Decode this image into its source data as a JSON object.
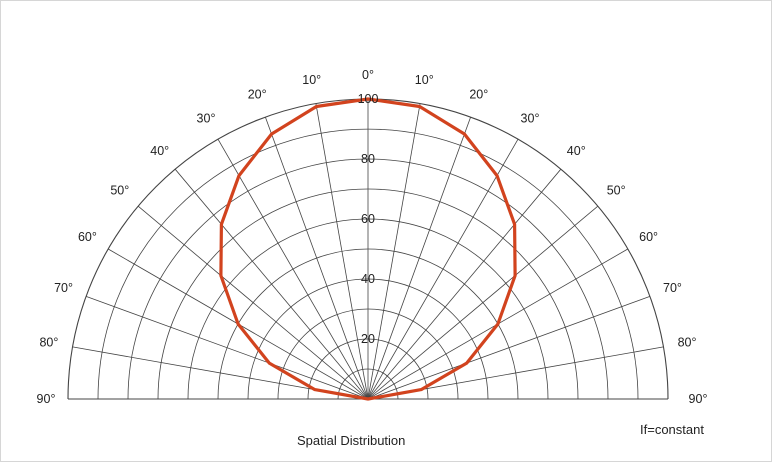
{
  "chart_data": {
    "type": "polar",
    "title": "Spatial Distribution",
    "note": "If=constant",
    "angle_range_deg": [
      -90,
      90
    ],
    "angle_ticks_left": [
      "90°",
      "80°",
      "70°",
      "60°",
      "50°",
      "40°",
      "30°",
      "20°",
      "10°",
      "0°"
    ],
    "angle_ticks_right": [
      "10°",
      "20°",
      "30°",
      "40°",
      "50°",
      "60°",
      "70°",
      "80°",
      "90°"
    ],
    "radial_ticks": [
      "20",
      "40",
      "60",
      "80",
      "100"
    ],
    "rlim": [
      0,
      100
    ],
    "grid": true,
    "series": [
      {
        "color": "#d2431e",
        "angles": [
          -90,
          -80,
          -70,
          -60,
          -50,
          -40,
          -30,
          -20,
          -10,
          0,
          10,
          20,
          30,
          40,
          50,
          60,
          70,
          80,
          90
        ],
        "values": [
          0,
          18,
          35,
          50,
          64,
          76,
          86,
          94,
          99,
          100,
          99,
          94,
          86,
          76,
          64,
          50,
          35,
          18,
          0
        ]
      }
    ]
  }
}
